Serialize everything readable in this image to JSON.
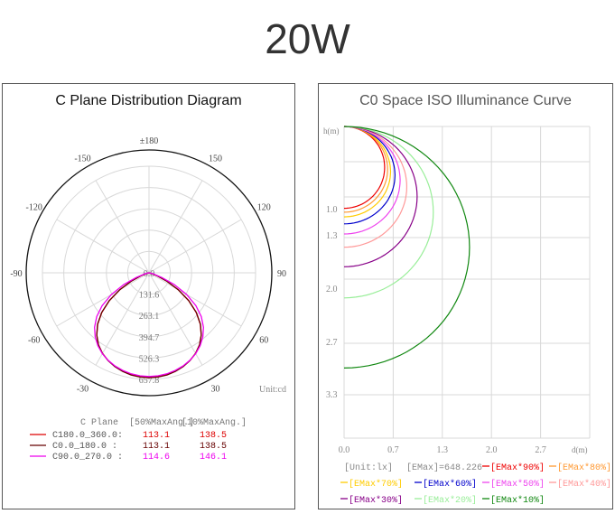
{
  "page_title": "20W",
  "colors": {
    "frame": "#555555",
    "grid": "#d8d8d8",
    "label": "#666666"
  },
  "chart_data": [
    {
      "type": "polar",
      "title": "C Plane Distribution Diagram",
      "unit_label": "Unit:cd",
      "angle_labels": [
        "±180",
        "150",
        "120",
        "90",
        "60",
        "30",
        "-30",
        "-60",
        "-90",
        "-120",
        "-150"
      ],
      "radial_labels": [
        "0.0",
        "131.6",
        "263.1",
        "394.7",
        "526.3",
        "657.8"
      ],
      "rmax": 657.8,
      "table_headers": [
        "C Plane",
        "[50%MaxAng.]",
        "[10%MaxAng.]"
      ],
      "series": [
        {
          "name": "C180.0_360.0:",
          "color": "#dd0000",
          "max50": "113.1",
          "max10": "138.5",
          "angles": [
            0,
            5,
            10,
            15,
            20,
            25,
            30,
            35,
            40,
            45,
            50,
            55,
            60,
            65,
            70,
            75,
            80,
            85,
            90
          ],
          "values": [
            645,
            643,
            638,
            628,
            615,
            597,
            574,
            543,
            501,
            448,
            380,
            299,
            207,
            118,
            51,
            15,
            4,
            2,
            0
          ]
        },
        {
          "name": "C0.0_180.0  :",
          "color": "#660000",
          "max50": "113.1",
          "max10": "138.5",
          "angles": [
            0,
            5,
            10,
            15,
            20,
            25,
            30,
            35,
            40,
            45,
            50,
            55,
            60,
            65,
            70,
            75,
            80,
            85,
            90
          ],
          "values": [
            648,
            646,
            640,
            630,
            616,
            598,
            575,
            544,
            502,
            449,
            381,
            300,
            208,
            119,
            52,
            15,
            4,
            2,
            0
          ]
        },
        {
          "name": "C90.0_270.0 :",
          "color": "#ee00ee",
          "max50": "114.6",
          "max10": "146.1",
          "angles": [
            0,
            5,
            10,
            15,
            20,
            25,
            30,
            35,
            40,
            45,
            50,
            55,
            60,
            65,
            70,
            75,
            80,
            85,
            90
          ],
          "values": [
            640,
            638,
            633,
            624,
            612,
            596,
            576,
            550,
            517,
            475,
            421,
            353,
            268,
            172,
            84,
            30,
            8,
            3,
            0
          ]
        }
      ]
    },
    {
      "type": "line",
      "title": "C0 Space ISO Illuminance Curve",
      "ylabel": "h(m)",
      "xlabel": "d(m)",
      "x_ticks": [
        "0.0",
        "0.7",
        "1.3",
        "2.0",
        "2.7"
      ],
      "y_ticks": [
        "1.0",
        "1.3",
        "2.0",
        "2.7",
        "3.3"
      ],
      "unit_text": "[Unit:lx]",
      "emax_text": "[EMax]=648.226",
      "xlim": [
        0,
        3.33
      ],
      "ylim": [
        0,
        4.0
      ],
      "legend": [
        {
          "label": "[EMax*90%]",
          "color": "#ee0000"
        },
        {
          "label": "[EMax*80%]",
          "color": "#ff9933"
        },
        {
          "label": "[EMax*70%]",
          "color": "#ffcc00"
        },
        {
          "label": "[EMax*60%]",
          "color": "#0000cc"
        },
        {
          "label": "[EMax*50%]",
          "color": "#ee44ee"
        },
        {
          "label": "[EMax*40%]",
          "color": "#ff9999"
        },
        {
          "label": "[EMax*30%]",
          "color": "#880088"
        },
        {
          "label": "[EMax*20%]",
          "color": "#99ee99"
        },
        {
          "label": "[EMax*10%]",
          "color": "#118811"
        }
      ],
      "series": [
        {
          "name": "[EMax*90%]",
          "color": "#ee0000",
          "depth": 1.05,
          "width": 0.55
        },
        {
          "name": "[EMax*80%]",
          "color": "#ff9933",
          "depth": 1.1,
          "width": 0.59
        },
        {
          "name": "[EMax*70%]",
          "color": "#ffcc00",
          "depth": 1.16,
          "width": 0.63
        },
        {
          "name": "[EMax*60%]",
          "color": "#0000cc",
          "depth": 1.25,
          "width": 0.69
        },
        {
          "name": "[EMax*50%]",
          "color": "#ee44ee",
          "depth": 1.38,
          "width": 0.76
        },
        {
          "name": "[EMax*40%]",
          "color": "#ff9999",
          "depth": 1.55,
          "width": 0.85
        },
        {
          "name": "[EMax*30%]",
          "color": "#880088",
          "depth": 1.8,
          "width": 0.99
        },
        {
          "name": "[EMax*20%]",
          "color": "#99ee99",
          "depth": 2.2,
          "width": 1.21
        },
        {
          "name": "[EMax*10%]",
          "color": "#118811",
          "depth": 3.1,
          "width": 1.7
        }
      ]
    }
  ]
}
